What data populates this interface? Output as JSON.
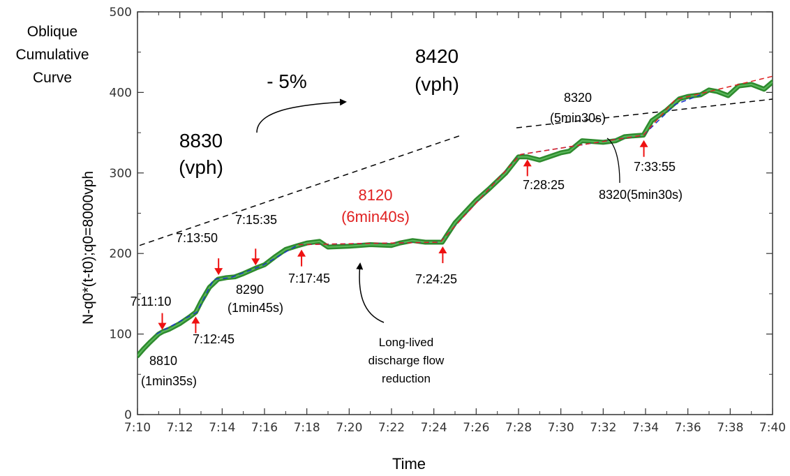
{
  "chart_data": {
    "type": "line",
    "title": "",
    "xlabel": "Time",
    "ylabel": "N-q0*(t-t0);q0=8000vph",
    "side_title": [
      "Oblique",
      "Cumulative",
      "Curve"
    ],
    "xlim": [
      0,
      30
    ],
    "ylim": [
      0,
      500
    ],
    "x_ticks": [
      {
        "x": 0,
        "label": "7:10"
      },
      {
        "x": 2,
        "label": "7:12"
      },
      {
        "x": 4,
        "label": "7:14"
      },
      {
        "x": 6,
        "label": "7:16"
      },
      {
        "x": 8,
        "label": "7:18"
      },
      {
        "x": 10,
        "label": "7:20"
      },
      {
        "x": 12,
        "label": "7:22"
      },
      {
        "x": 14,
        "label": "7:24"
      },
      {
        "x": 16,
        "label": "7:26"
      },
      {
        "x": 18,
        "label": "7:28"
      },
      {
        "x": 20,
        "label": "7:30"
      },
      {
        "x": 22,
        "label": "7:32"
      },
      {
        "x": 24,
        "label": "7:34"
      },
      {
        "x": 26,
        "label": "7:36"
      },
      {
        "x": 28,
        "label": "7:38"
      },
      {
        "x": 30,
        "label": "7:40"
      }
    ],
    "y_ticks": [
      {
        "y": 0,
        "label": "0"
      },
      {
        "y": 100,
        "label": "100"
      },
      {
        "y": 200,
        "label": "200"
      },
      {
        "y": 300,
        "label": "300"
      },
      {
        "y": 400,
        "label": "400"
      },
      {
        "y": 500,
        "label": "500"
      }
    ],
    "grid": false,
    "colors": {
      "data": "#2e8b2e",
      "fit_blue": "#1a33cc",
      "fit_red": "#e02020",
      "arrow": "#ee1111",
      "dashed": "#000000"
    },
    "series": [
      {
        "role": "observed",
        "x": [
          0,
          0.3,
          0.6,
          1.0,
          1.2,
          1.5,
          2.0,
          2.5,
          2.75,
          3.0,
          3.4,
          3.8,
          4.2,
          4.6,
          5.0,
          5.6,
          6.0,
          6.5,
          7.0,
          7.6,
          8.0,
          8.6,
          9.0,
          10.0,
          11.0,
          12.0,
          12.4,
          13.0,
          13.6,
          14.4,
          15.0,
          16.0,
          16.6,
          17.4,
          18.0,
          18.4,
          19.0,
          20.0,
          20.4,
          21.0,
          22.0,
          22.6,
          23.0,
          23.4,
          23.9,
          24.3,
          25.0,
          25.6,
          26.0,
          26.6,
          27.0,
          27.4,
          27.9,
          28.4,
          29.0,
          29.6,
          30.0
        ],
        "y": [
          73,
          82,
          90,
          100,
          103,
          106,
          113,
          122,
          127,
          140,
          158,
          168,
          170,
          171,
          175,
          182,
          186,
          196,
          205,
          210,
          213,
          215,
          208,
          209,
          211,
          210,
          213,
          216,
          214,
          214,
          238,
          266,
          280,
          300,
          320,
          320,
          316,
          325,
          327,
          340,
          338,
          340,
          345,
          346,
          347,
          365,
          378,
          392,
          395,
          397,
          403,
          401,
          396,
          408,
          410,
          404,
          413
        ]
      },
      {
        "role": "fit-blue",
        "x": [
          0.9,
          2.8,
          3.6,
          4.4,
          5.9,
          7.6,
          14.3,
          18.1,
          23.9,
          25.4,
          26.6
        ],
        "y": [
          100,
          127,
          168,
          170,
          185,
          211,
          214,
          323,
          347,
          385,
          397
        ]
      },
      {
        "role": "fit-red",
        "x": [
          7.6,
          14.3,
          18.1,
          23.9,
          25.4,
          30.0
        ],
        "y": [
          211,
          214,
          323,
          347,
          391,
          420
        ]
      }
    ],
    "reference_lines": [
      {
        "label": "8830 (vph)",
        "x": [
          0.1,
          15.2
        ],
        "y": [
          210,
          346
        ]
      },
      {
        "label": "8420 (vph)",
        "x": [
          17.9,
          60.0
        ],
        "y": [
          356,
          480
        ]
      }
    ],
    "change_label": "- 5%",
    "red_arrows": [
      {
        "x": 1.17,
        "y": 100,
        "dir": "down"
      },
      {
        "x": 2.75,
        "y": 127,
        "dir": "up"
      },
      {
        "x": 3.83,
        "y": 168,
        "dir": "down"
      },
      {
        "x": 5.58,
        "y": 180,
        "dir": "down"
      },
      {
        "x": 7.75,
        "y": 210,
        "dir": "up"
      },
      {
        "x": 14.42,
        "y": 214,
        "dir": "up"
      },
      {
        "x": 18.42,
        "y": 322,
        "dir": "up"
      },
      {
        "x": 23.92,
        "y": 346,
        "dir": "up"
      }
    ],
    "annotations": {
      "t_7_11_10": "7:11:10",
      "t_7_12_45": "7:12:45",
      "t_7_13_50": "7:13:50",
      "t_7_15_35": "7:15:35",
      "t_7_17_45": "7:17:45",
      "t_7_24_25": "7:24:25",
      "t_7_28_25": "7:28:25",
      "t_7_33_55": "7:33:55",
      "rate_8810": [
        "8810",
        "(1min35s)"
      ],
      "rate_8290": [
        "8290",
        "(1min45s)"
      ],
      "rate_8120": [
        "8120",
        "(6min40s)"
      ],
      "rate_8320_top": [
        "8320",
        "(5min30s)"
      ],
      "rate_8320_bottom": "8320(5min30s)",
      "rate_8830": [
        "8830",
        "(vph)"
      ],
      "rate_8420": [
        "8420",
        "(vph)"
      ],
      "long_lived": [
        "Long-lived",
        "discharge flow",
        "reduction"
      ]
    }
  }
}
